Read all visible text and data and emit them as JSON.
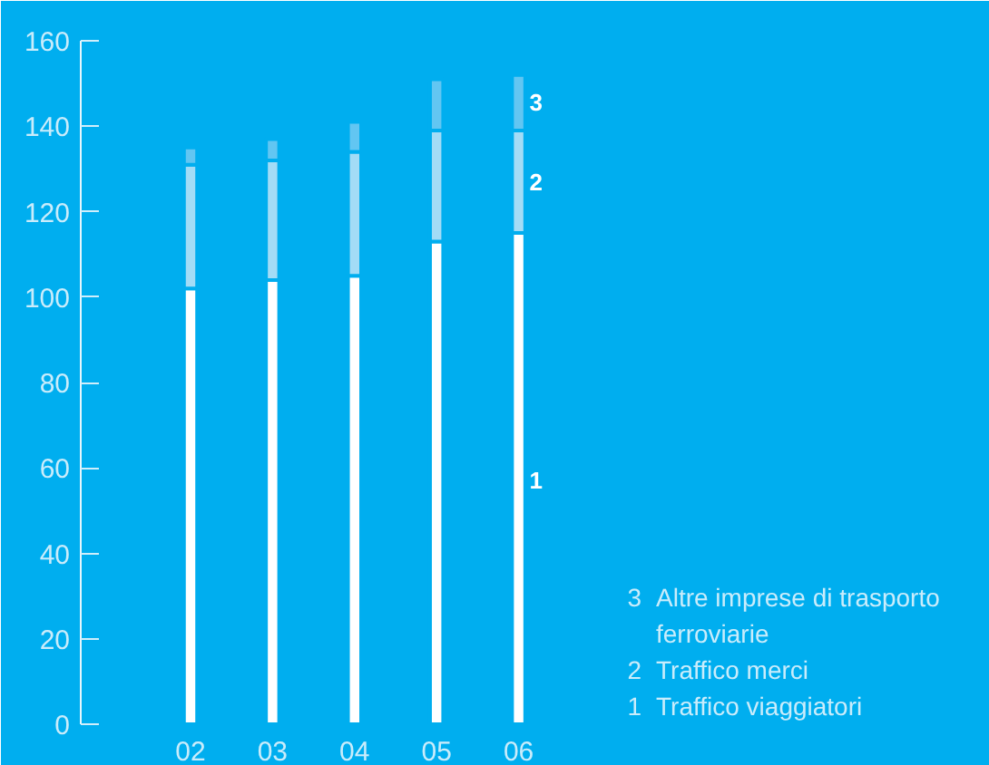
{
  "chart_data": {
    "type": "bar",
    "stacked": true,
    "categories": [
      "02",
      "03",
      "04",
      "05",
      "06"
    ],
    "series": [
      {
        "name": "Traffico viaggiatori",
        "color": "#ffffff",
        "values": [
          102,
          104,
          105,
          113,
          115
        ]
      },
      {
        "name": "Traffico merci",
        "color": "#a3dcf6",
        "values": [
          29,
          28,
          29,
          26,
          24
        ]
      },
      {
        "name": "Altre imprese di trasporto ferroviarie",
        "color": "#62c6f2",
        "values": [
          4,
          5,
          7,
          12,
          13
        ]
      }
    ],
    "ylim": [
      0,
      160
    ],
    "yticks": [
      0,
      20,
      40,
      60,
      80,
      100,
      120,
      140,
      160
    ],
    "grid": false,
    "legend": "bottom right",
    "annotations": [
      {
        "text": "1",
        "x": "06",
        "y": 57
      },
      {
        "text": "2",
        "x": "06",
        "y": 127
      },
      {
        "text": "3",
        "x": "06",
        "y": 145.5
      }
    ]
  }
}
